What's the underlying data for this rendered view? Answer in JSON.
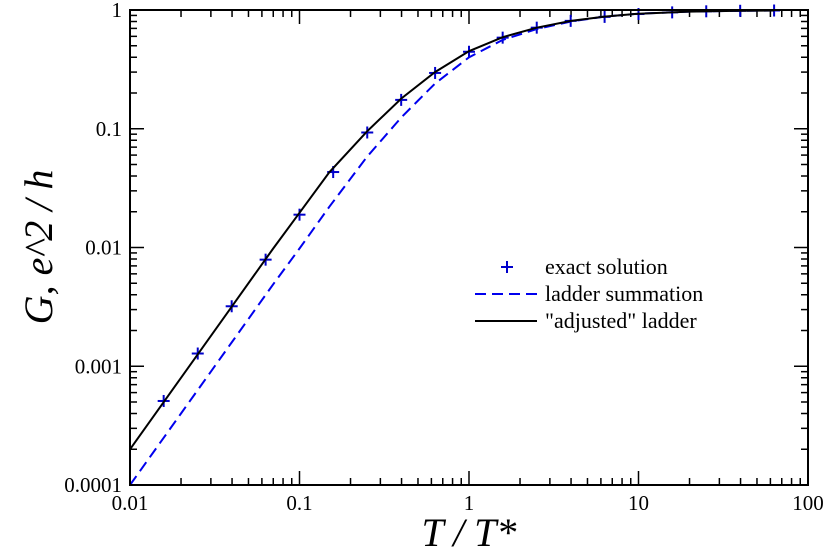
{
  "chart_data": {
    "type": "line",
    "title": "",
    "xlabel": "T / T*",
    "ylabel": "G, e^2 / h",
    "xscale": "log",
    "yscale": "log",
    "xlim": [
      0.01,
      100
    ],
    "ylim": [
      0.0001,
      1
    ],
    "x_ticks": [
      "0.01",
      "0.1",
      "1",
      "10",
      "100"
    ],
    "y_ticks": [
      "0.0001",
      "0.001",
      "0.01",
      "0.1",
      "1"
    ],
    "legend_position": "center-right",
    "series": [
      {
        "name": "exact solution",
        "style": "markers-plus",
        "color": "#0000cc",
        "x": [
          0.0158,
          0.0251,
          0.0398,
          0.0631,
          0.1,
          0.158,
          0.251,
          0.398,
          0.631,
          1.0,
          1.58,
          2.51,
          3.98,
          6.31,
          10,
          15.8,
          25.1,
          39.8,
          63.1
        ],
        "y": [
          0.00051,
          0.00128,
          0.0032,
          0.0079,
          0.0189,
          0.0432,
          0.093,
          0.175,
          0.295,
          0.445,
          0.585,
          0.71,
          0.81,
          0.875,
          0.925,
          0.955,
          0.975,
          0.985,
          0.99
        ]
      },
      {
        "name": "ladder summation",
        "style": "dashed",
        "color": "#0000ee",
        "x": [
          0.01,
          0.02,
          0.04,
          0.07,
          0.1,
          0.15,
          0.25,
          0.4,
          0.63,
          1.0,
          1.58,
          2.51,
          4,
          6.3,
          10,
          20,
          40,
          63.1
        ],
        "y": [
          0.0001,
          0.0004,
          0.0016,
          0.0049,
          0.0098,
          0.022,
          0.058,
          0.125,
          0.24,
          0.4,
          0.56,
          0.69,
          0.8,
          0.88,
          0.93,
          0.97,
          0.985,
          0.99
        ]
      },
      {
        "name": "\"adjusted\" ladder",
        "style": "solid",
        "color": "#000000",
        "x": [
          0.01,
          0.02,
          0.04,
          0.07,
          0.1,
          0.15,
          0.25,
          0.4,
          0.63,
          1.0,
          1.58,
          2.51,
          4,
          6.3,
          10,
          20,
          40,
          63.1
        ],
        "y": [
          0.0002,
          0.0008,
          0.0032,
          0.0098,
          0.0196,
          0.043,
          0.095,
          0.18,
          0.3,
          0.45,
          0.59,
          0.71,
          0.81,
          0.88,
          0.93,
          0.97,
          0.985,
          0.99
        ]
      }
    ]
  }
}
